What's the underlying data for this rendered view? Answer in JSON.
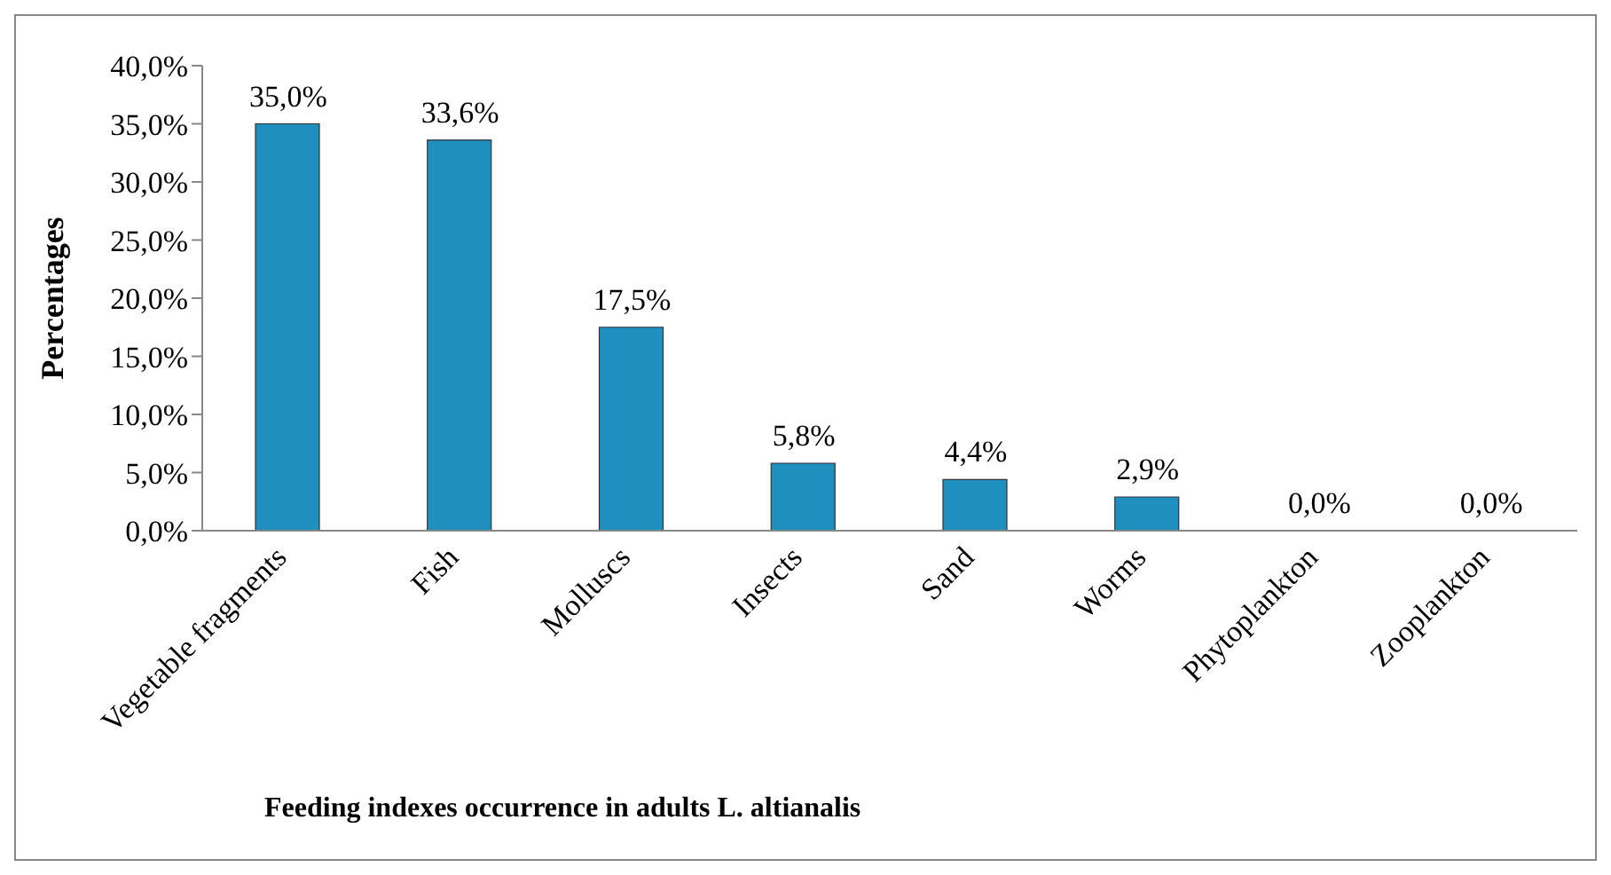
{
  "chart_data": {
    "type": "bar",
    "categories": [
      "Vegetable fragments",
      "Fish",
      "Molluscs",
      "Insects",
      "Sand",
      "Worms",
      "Phytoplankton",
      "Zooplankton"
    ],
    "values": [
      35.0,
      33.6,
      17.5,
      5.8,
      4.4,
      2.9,
      0.0,
      0.0
    ],
    "value_labels": [
      "35,0%",
      "33,6%",
      "17,5%",
      "5,8%",
      "4,4%",
      "2,9%",
      "0,0%",
      "0,0%"
    ],
    "color": "#1f8fc0",
    "ylabel": "Percentages",
    "xlabel": "Feeding indexes occurrence in adults L. altianalis",
    "ylim": [
      0,
      40
    ],
    "yticks": [
      {
        "value": 0,
        "label": "0,0%"
      },
      {
        "value": 5,
        "label": "5,0%"
      },
      {
        "value": 10,
        "label": "10,0%"
      },
      {
        "value": 15,
        "label": "15,0%"
      },
      {
        "value": 20,
        "label": "20,0%"
      },
      {
        "value": 25,
        "label": "25,0%"
      },
      {
        "value": 30,
        "label": "30,0%"
      },
      {
        "value": 35,
        "label": "35,0%"
      },
      {
        "value": 40,
        "label": "40,0%"
      }
    ],
    "grid": false,
    "legend": false
  }
}
